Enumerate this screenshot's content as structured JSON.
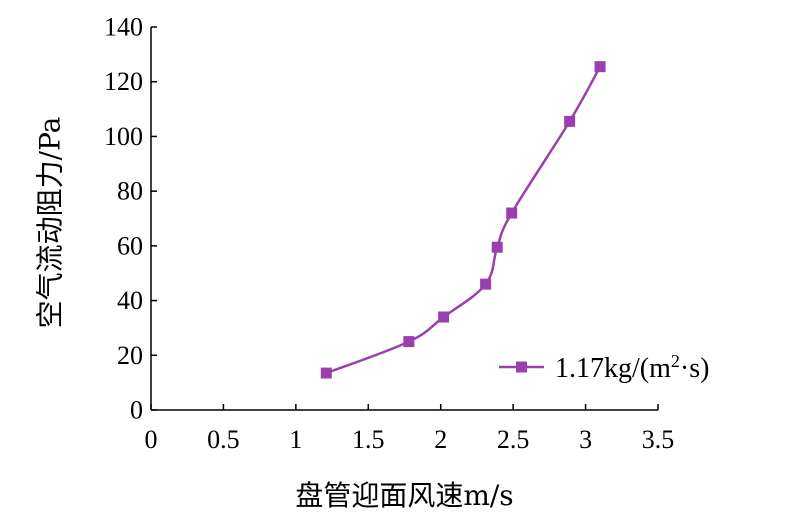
{
  "chart_data": {
    "type": "line",
    "xlabel": "盘管迎面风速m/s",
    "ylabel": "空气流动阻力/Pa",
    "xlim": [
      0,
      3.5
    ],
    "ylim": [
      0,
      140
    ],
    "x_ticks": [
      "0",
      "0.5",
      "1",
      "1.5",
      "2",
      "2.5",
      "3",
      "3.5"
    ],
    "y_ticks": [
      "0",
      "20",
      "40",
      "60",
      "80",
      "100",
      "120",
      "140"
    ],
    "grid": false,
    "legend_position": "bottom-right",
    "series": [
      {
        "name_prefix": "1.17kg/(m",
        "name_sup": "2",
        "name_suffix": "·s)",
        "color": "#9b3fae",
        "marker": "square",
        "x": [
          1.21,
          1.78,
          2.02,
          2.31,
          2.39,
          2.49,
          2.89,
          3.1
        ],
        "y": [
          13.5,
          25,
          34,
          46,
          59.5,
          72,
          105.5,
          125.5
        ]
      }
    ]
  }
}
